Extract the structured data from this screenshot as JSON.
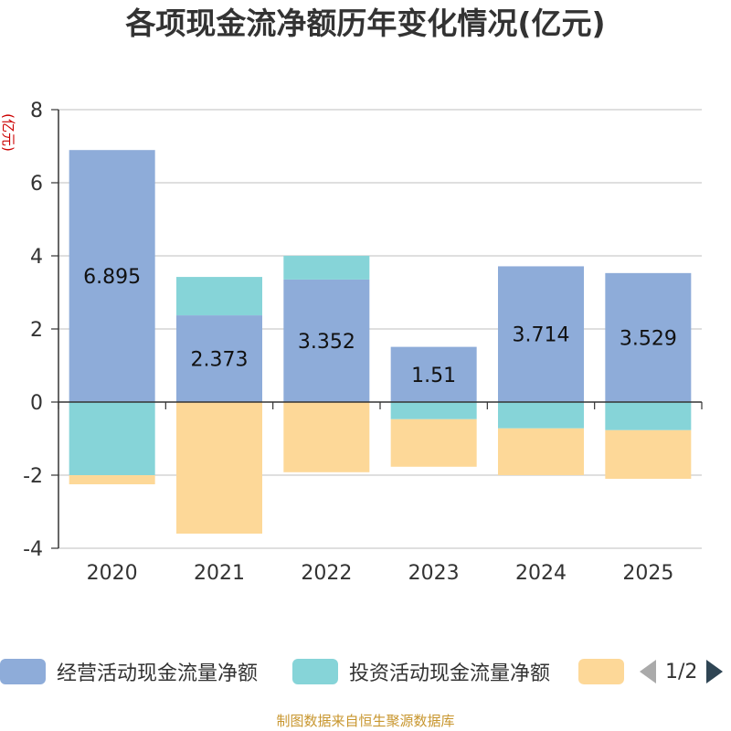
{
  "chart_data": {
    "type": "bar",
    "stacked": true,
    "title": "各项现金流净额历年变化情况(亿元)",
    "ylabel": "(亿元)",
    "xlabel": "",
    "ylim": [
      -4,
      8
    ],
    "yticks": [
      8,
      6,
      4,
      2,
      0,
      -2,
      -4
    ],
    "categories": [
      "2020",
      "2021",
      "2022",
      "2023",
      "2024",
      "2025"
    ],
    "series": [
      {
        "name": "经营活动现金流量净额",
        "color": "#8eacd9",
        "values": [
          6.895,
          2.373,
          3.352,
          1.51,
          3.714,
          3.529
        ],
        "labels": [
          "6.895",
          "2.373",
          "3.352",
          "1.51",
          "3.714",
          "3.529"
        ]
      },
      {
        "name": "投资活动现金流量净额",
        "color": "#86d4d8",
        "values": [
          -2.0,
          1.05,
          0.65,
          -0.47,
          -0.72,
          -0.77
        ]
      },
      {
        "name": "",
        "color": "#fdd898",
        "values": [
          -0.25,
          -3.6,
          -1.92,
          -1.3,
          -1.28,
          -1.33
        ]
      }
    ],
    "legend_position": "bottom"
  },
  "legend": {
    "pager_text": "1/2",
    "prev_icon": "chevron-left-icon",
    "next_icon": "chevron-right-icon"
  },
  "footer": {
    "source": "制图数据来自恒生聚源数据库"
  }
}
